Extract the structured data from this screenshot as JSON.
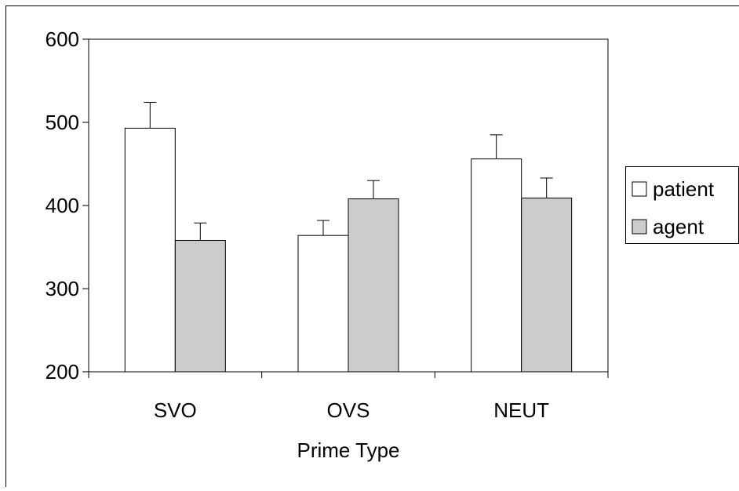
{
  "chart_data": {
    "type": "bar",
    "title": "",
    "xlabel": "Prime Type",
    "ylabel": "",
    "categories": [
      "SVO",
      "OVS",
      "NEUT"
    ],
    "series": [
      {
        "name": "patient",
        "values": [
          493,
          364,
          456
        ],
        "errors": [
          31,
          18,
          29
        ],
        "color": "#ffffff"
      },
      {
        "name": "agent",
        "values": [
          358,
          408,
          409
        ],
        "errors": [
          21,
          22,
          24
        ],
        "color": "#cccccc"
      }
    ],
    "ylim": [
      200,
      600
    ],
    "yticks": [
      "200",
      "300",
      "400",
      "500",
      "600"
    ],
    "grid": false,
    "legend_position": "right"
  }
}
